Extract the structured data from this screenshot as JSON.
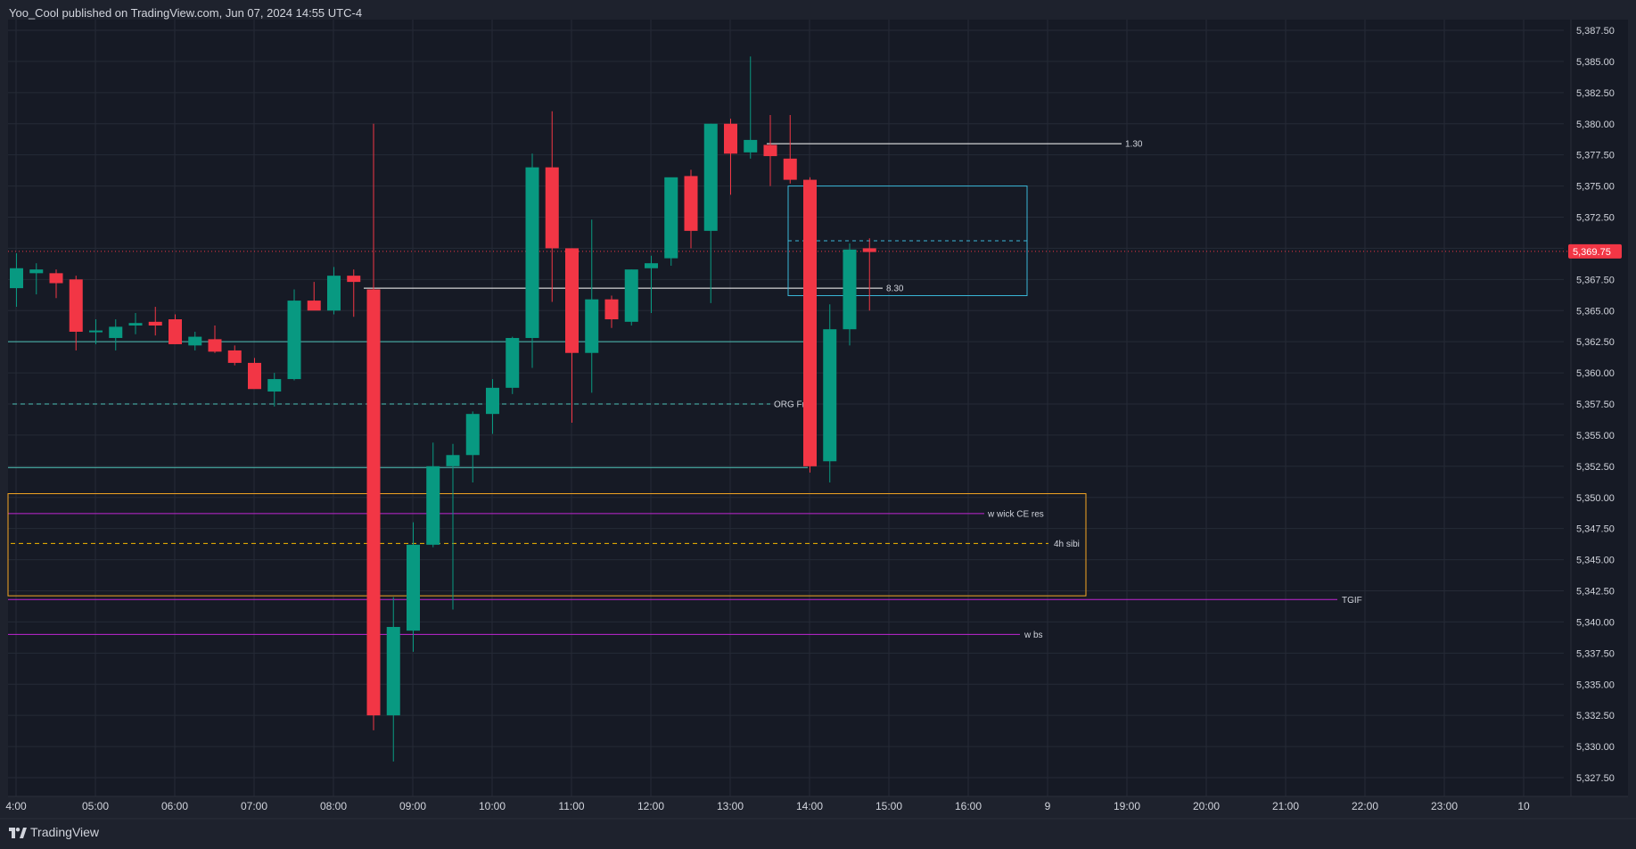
{
  "header": {
    "publish_note": "Yoo_Cool published on TradingView.com, Jun 07, 2024 14:55 UTC-4"
  },
  "footer": {
    "brand_label": "TradingView",
    "brand_icon": "tradingview-logo-icon"
  },
  "colors": {
    "background": "#161a25",
    "up": "#089981",
    "down": "#f23645",
    "grid": "#252a36",
    "axis_text": "#d1d4dc",
    "last_price": "#f23645"
  },
  "chart_data": {
    "type": "candlestick",
    "title": "",
    "x_ticks": [
      "4:00",
      "05:00",
      "06:00",
      "07:00",
      "08:00",
      "09:00",
      "10:00",
      "11:00",
      "12:00",
      "13:00",
      "14:00",
      "15:00",
      "16:00",
      "9",
      "19:00",
      "20:00",
      "21:00",
      "22:00",
      "23:00",
      "10"
    ],
    "y_ticks": [
      "5,387.50",
      "5,385.00",
      "5,382.50",
      "5,380.00",
      "5,377.50",
      "5,375.00",
      "5,372.50",
      "5,370.00",
      "5,367.50",
      "5,365.00",
      "5,362.50",
      "5,360.00",
      "5,357.50",
      "5,355.00",
      "5,352.50",
      "5,350.00",
      "5,347.50",
      "5,345.00",
      "5,342.50",
      "5,340.00",
      "5,337.50",
      "5,335.00",
      "5,332.50",
      "5,330.00",
      "5,327.50"
    ],
    "ylim": [
      5327.5,
      5387.5
    ],
    "last_price": 5369.75,
    "last_price_label": "5,369.75",
    "candles": [
      {
        "o": 5366.8,
        "h": 5369.6,
        "l": 5365.3,
        "c": 5368.4
      },
      {
        "o": 5368.0,
        "h": 5368.8,
        "l": 5366.3,
        "c": 5368.3
      },
      {
        "o": 5368.0,
        "h": 5368.3,
        "l": 5366.0,
        "c": 5367.2
      },
      {
        "o": 5367.5,
        "h": 5367.8,
        "l": 5361.8,
        "c": 5363.3
      },
      {
        "o": 5363.3,
        "h": 5364.3,
        "l": 5362.3,
        "c": 5363.4
      },
      {
        "o": 5362.8,
        "h": 5364.3,
        "l": 5361.8,
        "c": 5363.7
      },
      {
        "o": 5363.8,
        "h": 5364.8,
        "l": 5363.1,
        "c": 5364.0
      },
      {
        "o": 5364.1,
        "h": 5365.3,
        "l": 5363.0,
        "c": 5363.8
      },
      {
        "o": 5364.3,
        "h": 5364.7,
        "l": 5362.3,
        "c": 5362.3
      },
      {
        "o": 5362.2,
        "h": 5363.3,
        "l": 5361.8,
        "c": 5362.9
      },
      {
        "o": 5362.7,
        "h": 5363.8,
        "l": 5361.6,
        "c": 5361.7
      },
      {
        "o": 5361.8,
        "h": 5362.2,
        "l": 5360.6,
        "c": 5360.8
      },
      {
        "o": 5360.8,
        "h": 5361.2,
        "l": 5358.8,
        "c": 5358.7
      },
      {
        "o": 5358.5,
        "h": 5360.0,
        "l": 5357.3,
        "c": 5359.5
      },
      {
        "o": 5359.5,
        "h": 5366.7,
        "l": 5359.4,
        "c": 5365.8
      },
      {
        "o": 5365.8,
        "h": 5367.3,
        "l": 5365.3,
        "c": 5365.0
      },
      {
        "o": 5365.0,
        "h": 5368.5,
        "l": 5364.7,
        "c": 5367.8
      },
      {
        "o": 5367.8,
        "h": 5368.3,
        "l": 5364.5,
        "c": 5367.3
      },
      {
        "o": 5366.7,
        "h": 5380.0,
        "l": 5331.3,
        "c": 5332.5
      },
      {
        "o": 5332.5,
        "h": 5342.0,
        "l": 5328.8,
        "c": 5339.6
      },
      {
        "o": 5339.3,
        "h": 5348.0,
        "l": 5337.6,
        "c": 5346.2
      },
      {
        "o": 5346.2,
        "h": 5354.4,
        "l": 5346.0,
        "c": 5352.5
      },
      {
        "o": 5352.5,
        "h": 5354.3,
        "l": 5341.0,
        "c": 5353.4
      },
      {
        "o": 5353.4,
        "h": 5356.9,
        "l": 5351.2,
        "c": 5356.7
      },
      {
        "o": 5356.7,
        "h": 5359.5,
        "l": 5355.1,
        "c": 5358.8
      },
      {
        "o": 5358.8,
        "h": 5362.9,
        "l": 5358.3,
        "c": 5362.8
      },
      {
        "o": 5362.8,
        "h": 5377.6,
        "l": 5360.4,
        "c": 5376.5
      },
      {
        "o": 5376.5,
        "h": 5381.0,
        "l": 5365.7,
        "c": 5370.0
      },
      {
        "o": 5370.0,
        "h": 5370.0,
        "l": 5356.0,
        "c": 5361.6
      },
      {
        "o": 5361.6,
        "h": 5372.3,
        "l": 5358.4,
        "c": 5365.9
      },
      {
        "o": 5365.9,
        "h": 5366.2,
        "l": 5363.6,
        "c": 5364.3
      },
      {
        "o": 5364.1,
        "h": 5368.3,
        "l": 5363.8,
        "c": 5368.3
      },
      {
        "o": 5368.4,
        "h": 5369.4,
        "l": 5364.8,
        "c": 5368.8
      },
      {
        "o": 5369.2,
        "h": 5375.5,
        "l": 5368.6,
        "c": 5375.7
      },
      {
        "o": 5375.8,
        "h": 5376.3,
        "l": 5370.0,
        "c": 5371.4
      },
      {
        "o": 5371.4,
        "h": 5380.0,
        "l": 5365.6,
        "c": 5380.0
      },
      {
        "o": 5380.0,
        "h": 5380.4,
        "l": 5374.3,
        "c": 5377.6
      },
      {
        "o": 5377.7,
        "h": 5385.4,
        "l": 5377.2,
        "c": 5378.7
      },
      {
        "o": 5378.3,
        "h": 5380.7,
        "l": 5375.0,
        "c": 5377.4
      },
      {
        "o": 5377.2,
        "h": 5380.7,
        "l": 5375.2,
        "c": 5375.5
      },
      {
        "o": 5375.5,
        "h": 5375.7,
        "l": 5352.0,
        "c": 5352.5
      },
      {
        "o": 5352.9,
        "h": 5365.5,
        "l": 5351.2,
        "c": 5363.5
      },
      {
        "o": 5363.5,
        "h": 5370.4,
        "l": 5362.2,
        "c": 5369.9
      },
      {
        "o": 5370.0,
        "h": 5370.8,
        "l": 5365.0,
        "c": 5369.7
      }
    ],
    "annotations": {
      "horizontal_lines": [
        {
          "price": 5378.4,
          "label": "1.30",
          "color": "#ffffff",
          "style": "solid"
        },
        {
          "price": 5366.8,
          "label": "8.30",
          "color": "#ffffff",
          "style": "solid"
        },
        {
          "price": 5362.5,
          "label": "",
          "color": "#4fc3b7",
          "style": "solid"
        },
        {
          "price": 5357.5,
          "label": "ORG Fri",
          "color": "#4fc3b7",
          "style": "dashed"
        },
        {
          "price": 5352.4,
          "label": "",
          "color": "#4fc3b7",
          "style": "solid"
        },
        {
          "price": 5348.7,
          "label": "w wick CE res",
          "color": "#c026d3",
          "style": "solid"
        },
        {
          "price": 5346.3,
          "label": "4h sibi",
          "color": "#f5b800",
          "style": "dashed"
        },
        {
          "price": 5341.8,
          "label": "TGIF",
          "color": "#c026d3",
          "style": "solid"
        },
        {
          "price": 5339.0,
          "label": "w bs",
          "color": "#c026d3",
          "style": "solid"
        }
      ],
      "boxes": [
        {
          "top": 5375.0,
          "bottom": 5366.2,
          "mid": 5370.6,
          "color": "#3ab7d8"
        },
        {
          "top": 5350.3,
          "bottom": 5342.1,
          "color": "#f5a623"
        }
      ]
    }
  }
}
